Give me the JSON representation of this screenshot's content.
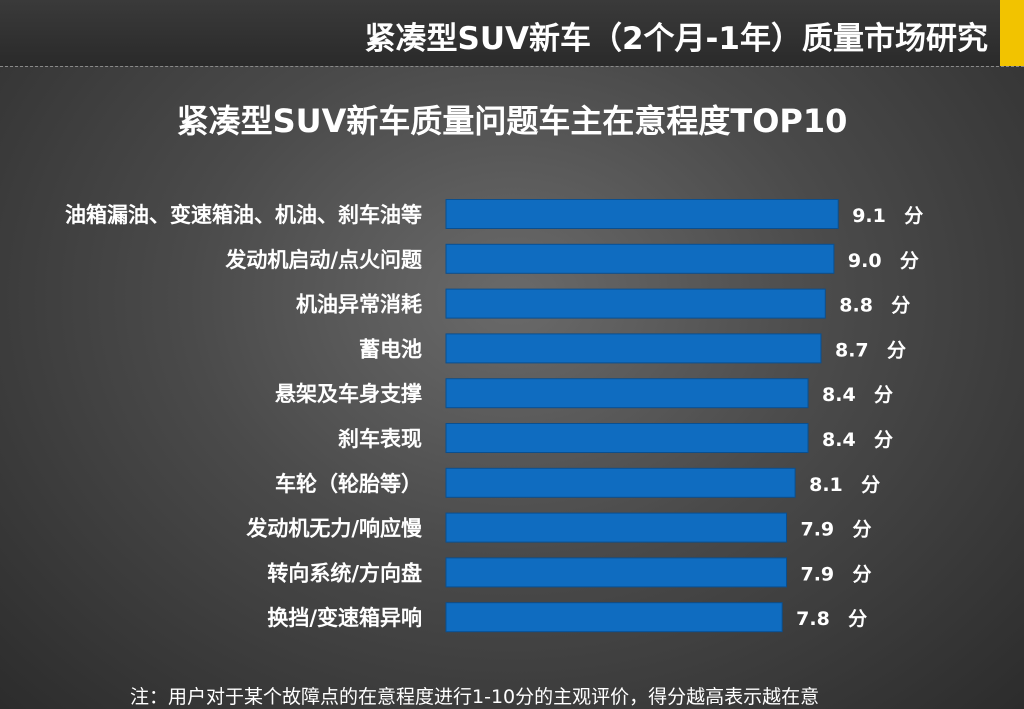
{
  "header": {
    "report_title": "紧凑型SUV新车（2个月-1年）质量市场研究"
  },
  "colors": {
    "accent": "#f2c300",
    "bar": "#0f6cc0"
  },
  "chart_data": {
    "type": "bar",
    "orientation": "horizontal",
    "title": "紧凑型SUV新车质量问题车主在意程度TOP10",
    "categories": [
      "油箱漏油、变速箱油、机油、刹车油等",
      "发动机启动/点火问题",
      "机油异常消耗",
      "蓄电池",
      "悬架及车身支撑",
      "刹车表现",
      "车轮（轮胎等）",
      "发动机无力/响应慢",
      "转向系统/方向盘",
      "换挡/变速箱异响"
    ],
    "values": [
      9.1,
      9.0,
      8.8,
      8.7,
      8.4,
      8.4,
      8.1,
      7.9,
      7.9,
      7.8
    ],
    "value_labels": [
      "9.1",
      "9.0",
      "8.8",
      "8.7",
      "8.4",
      "8.4",
      "8.1",
      "7.9",
      "7.9",
      "7.8"
    ],
    "unit": "分",
    "grid": false,
    "legend": "none"
  },
  "footnote": "注：用户对于某个故障点的在意程度进行1-10分的主观评价，得分越高表示越在意"
}
